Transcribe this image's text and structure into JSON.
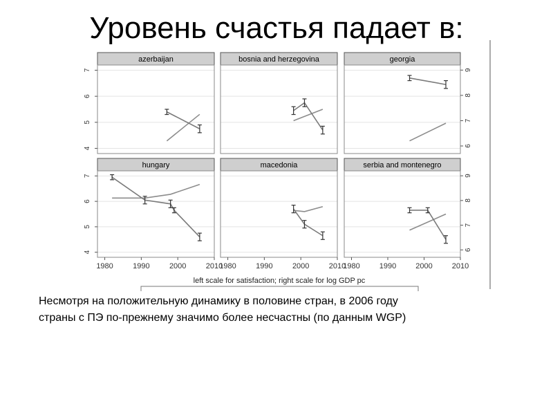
{
  "slide": {
    "title": "Уровень счастья падает в:",
    "caption_lines": [
      "Несмотря на положительную динамику в половине стран, в 2006 году",
      "страны с ПЭ по-прежнему значимо более несчастны (по данным WGP)"
    ]
  },
  "colors": {
    "header_fill": "#cfcfcf",
    "satisfaction": "#7a7a7a",
    "gdp": "#8c8c8c",
    "frame": "#888888"
  },
  "chart_data": {
    "type": "line",
    "title": "",
    "xlabel": "left scale for satisfaction; right scale for log GDP pc",
    "x_ticks": [
      1980,
      1990,
      2000,
      2010
    ],
    "xlim": [
      1978,
      2010
    ],
    "left_ylabel": "",
    "left_ylim": [
      3.8,
      7.2
    ],
    "left_ticks": [
      4,
      5,
      6,
      7
    ],
    "right_ylabel": "",
    "right_ylim": [
      5.7,
      9.2
    ],
    "right_ticks": [
      6,
      7,
      8,
      9
    ],
    "grid": "horizontal",
    "panels": [
      {
        "name": "azerbaijan",
        "satisfaction": [
          {
            "x": 1997,
            "y": 5.4,
            "lo": 5.3,
            "hi": 5.5
          },
          {
            "x": 2006,
            "y": 4.75,
            "lo": 4.6,
            "hi": 4.9
          }
        ],
        "log_gdp": [
          {
            "x": 1997,
            "y": 6.2
          },
          {
            "x": 2006,
            "y": 7.25
          }
        ]
      },
      {
        "name": "bosnia and herzegovina",
        "satisfaction": [
          {
            "x": 1998,
            "y": 5.45,
            "lo": 5.3,
            "hi": 5.6
          },
          {
            "x": 2001,
            "y": 5.75,
            "lo": 5.6,
            "hi": 5.9
          },
          {
            "x": 2006,
            "y": 4.7,
            "lo": 4.55,
            "hi": 4.85
          }
        ],
        "log_gdp": [
          {
            "x": 1998,
            "y": 7.0
          },
          {
            "x": 2006,
            "y": 7.45
          }
        ]
      },
      {
        "name": "georgia",
        "satisfaction": [
          {
            "x": 1996,
            "y": 6.7,
            "lo": 6.6,
            "hi": 6.8
          },
          {
            "x": 2006,
            "y": 6.45,
            "lo": 6.3,
            "hi": 6.6
          }
        ],
        "log_gdp": [
          {
            "x": 1996,
            "y": 6.2
          },
          {
            "x": 2006,
            "y": 6.9
          }
        ]
      },
      {
        "name": "hungary",
        "satisfaction": [
          {
            "x": 1982,
            "y": 6.95,
            "lo": 6.85,
            "hi": 7.05
          },
          {
            "x": 1991,
            "y": 6.05,
            "lo": 5.9,
            "hi": 6.2
          },
          {
            "x": 1998,
            "y": 5.9,
            "lo": 5.75,
            "hi": 6.05
          },
          {
            "x": 1999,
            "y": 5.65,
            "lo": 5.55,
            "hi": 5.75
          },
          {
            "x": 2006,
            "y": 4.6,
            "lo": 4.45,
            "hi": 4.75
          }
        ],
        "log_gdp": [
          {
            "x": 1982,
            "y": 8.1
          },
          {
            "x": 1991,
            "y": 8.1
          },
          {
            "x": 1998,
            "y": 8.25
          },
          {
            "x": 2006,
            "y": 8.65
          }
        ]
      },
      {
        "name": "macedonia",
        "satisfaction": [
          {
            "x": 1998,
            "y": 5.7,
            "lo": 5.55,
            "hi": 5.85
          },
          {
            "x": 2001,
            "y": 5.1,
            "lo": 4.95,
            "hi": 5.25
          },
          {
            "x": 2006,
            "y": 4.65,
            "lo": 4.5,
            "hi": 4.8
          }
        ],
        "log_gdp": [
          {
            "x": 1998,
            "y": 7.6
          },
          {
            "x": 2001,
            "y": 7.55
          },
          {
            "x": 2006,
            "y": 7.75
          }
        ]
      },
      {
        "name": "serbia and montenegro",
        "satisfaction": [
          {
            "x": 1996,
            "y": 5.65,
            "lo": 5.55,
            "hi": 5.75
          },
          {
            "x": 2001,
            "y": 5.65,
            "lo": 5.55,
            "hi": 5.75
          },
          {
            "x": 2006,
            "y": 4.5,
            "lo": 4.35,
            "hi": 4.65
          }
        ],
        "log_gdp": [
          {
            "x": 1996,
            "y": 6.8
          },
          {
            "x": 2006,
            "y": 7.45
          }
        ]
      }
    ]
  }
}
